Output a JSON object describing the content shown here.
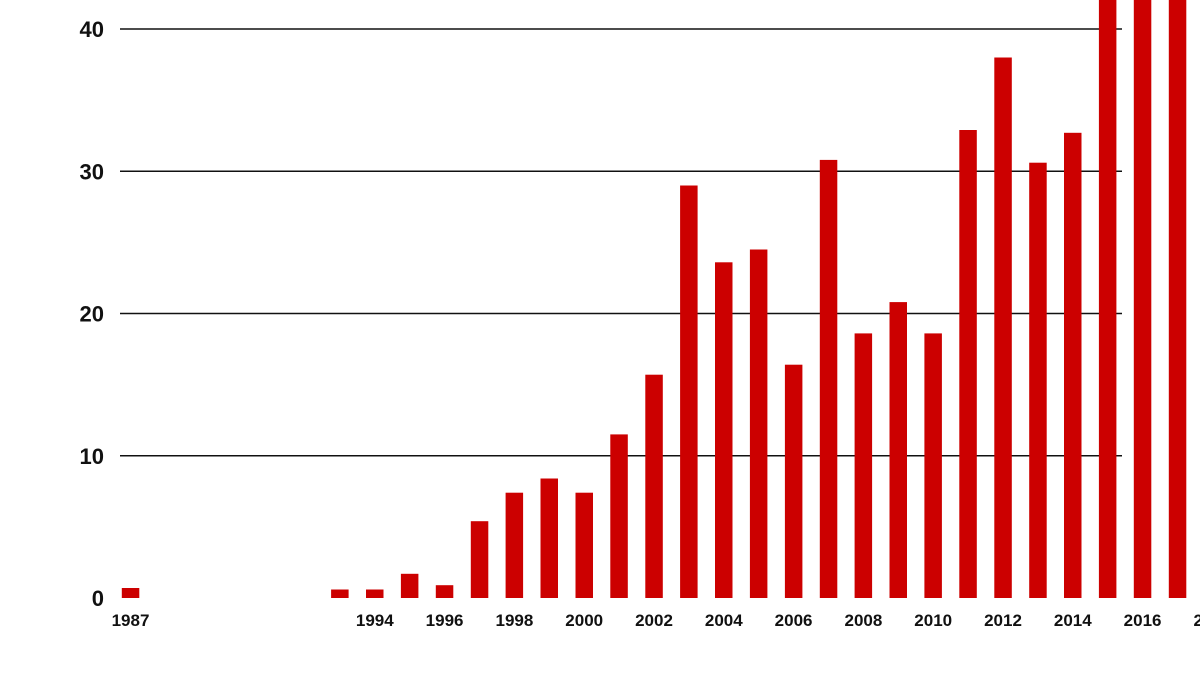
{
  "chart_data": {
    "type": "bar",
    "title": "",
    "xlabel": "",
    "ylabel": "",
    "categories": [
      "1987",
      "1988",
      "1989",
      "1990",
      "1991",
      "1992",
      "1993",
      "1994",
      "1995",
      "1996",
      "1997",
      "1998",
      "1999",
      "2000",
      "2001",
      "2002",
      "2003",
      "2004",
      "2005",
      "2006",
      "2007",
      "2008",
      "2009",
      "2010",
      "2011",
      "2012",
      "2013",
      "2014",
      "2015",
      "2016",
      "2017",
      "2018"
    ],
    "values": [
      0.7,
      0,
      0,
      0,
      0,
      0,
      0.6,
      0.6,
      1.7,
      0.9,
      5.4,
      7.4,
      8.4,
      7.4,
      11.5,
      15.7,
      29.0,
      23.6,
      24.5,
      16.4,
      30.8,
      18.6,
      20.8,
      18.6,
      32.9,
      38.0,
      30.6,
      32.7,
      42.5,
      42.5,
      42.5,
      42.5
    ],
    "x_tick_labels": [
      "1987",
      "1994",
      "1996",
      "1998",
      "2000",
      "2002",
      "2004",
      "2006",
      "2008",
      "2010",
      "2012",
      "2014",
      "2016",
      "2018"
    ],
    "y_ticks": [
      0,
      10,
      20,
      30,
      40
    ],
    "ylim": [
      0,
      42
    ],
    "grid": true,
    "legend": "none",
    "colors": {
      "bar": "#cc0000",
      "grid": "#111111",
      "text": "#111111"
    }
  }
}
